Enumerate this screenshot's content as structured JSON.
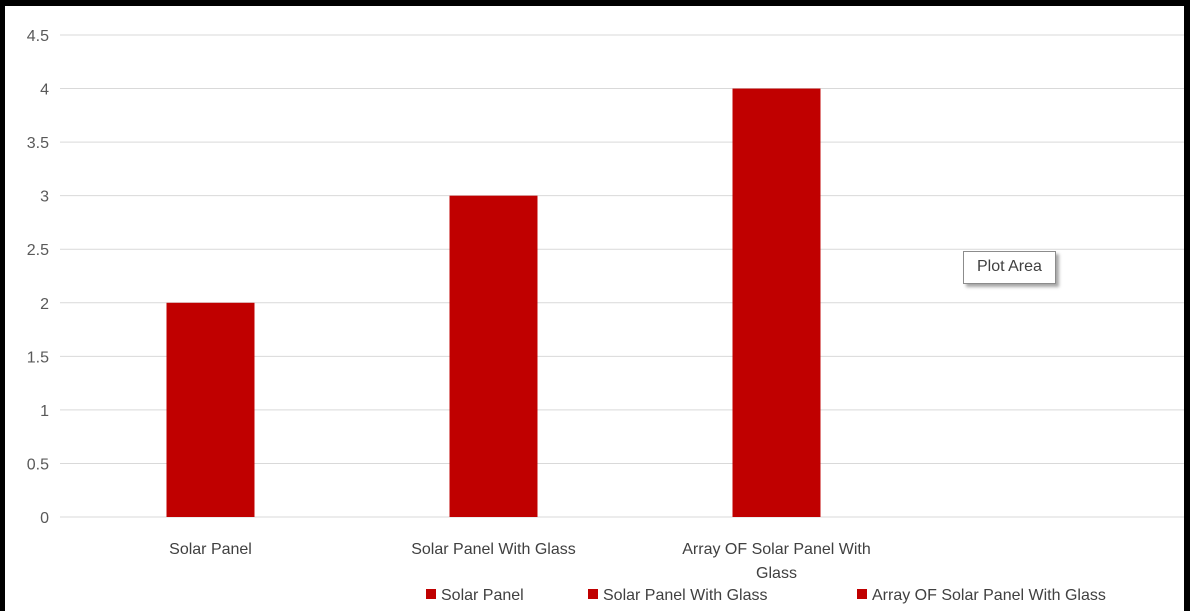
{
  "colors": {
    "bar": "#c00000",
    "grid": "#d9d9d9"
  },
  "tooltip": {
    "label": "Plot Area"
  },
  "chart_data": {
    "type": "bar",
    "categories": [
      "Solar Panel",
      "Solar Panel With Glass",
      "Array OF Solar Panel With Glass"
    ],
    "category_label_lines": [
      [
        "Solar Panel"
      ],
      [
        "Solar Panel With Glass"
      ],
      [
        "Array OF Solar Panel With",
        "Glass"
      ]
    ],
    "values": [
      2,
      3,
      4
    ],
    "ylim": [
      0,
      4.5
    ],
    "yticks": [
      "0",
      "0.5",
      "1",
      "1.5",
      "2",
      "2.5",
      "3",
      "3.5",
      "4",
      "4.5"
    ],
    "legend": [
      "Solar Panel",
      "Solar Panel With Glass",
      "Array OF Solar Panel With Glass"
    ],
    "legend_position": "bottom",
    "grid": true
  }
}
